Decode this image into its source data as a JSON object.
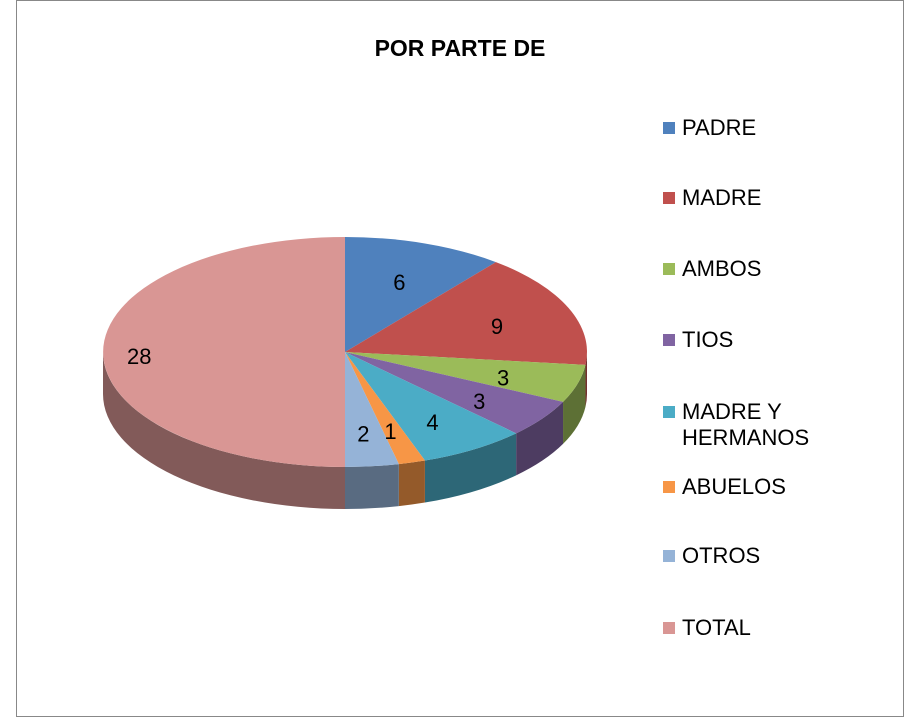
{
  "chart_data": {
    "type": "pie",
    "title": "POR PARTE DE",
    "categories": [
      "PADRE",
      "MADRE",
      "AMBOS",
      "TIOS",
      "MADRE Y HERMANOS",
      "ABUELOS",
      "OTROS",
      "TOTAL"
    ],
    "values": [
      6,
      9,
      3,
      3,
      4,
      1,
      2,
      28
    ],
    "colors": [
      "#4f81bd",
      "#c0504d",
      "#9bbb59",
      "#8064a2",
      "#4bacc6",
      "#f79646",
      "#95b3d7",
      "#d99694"
    ],
    "legend": "right"
  }
}
